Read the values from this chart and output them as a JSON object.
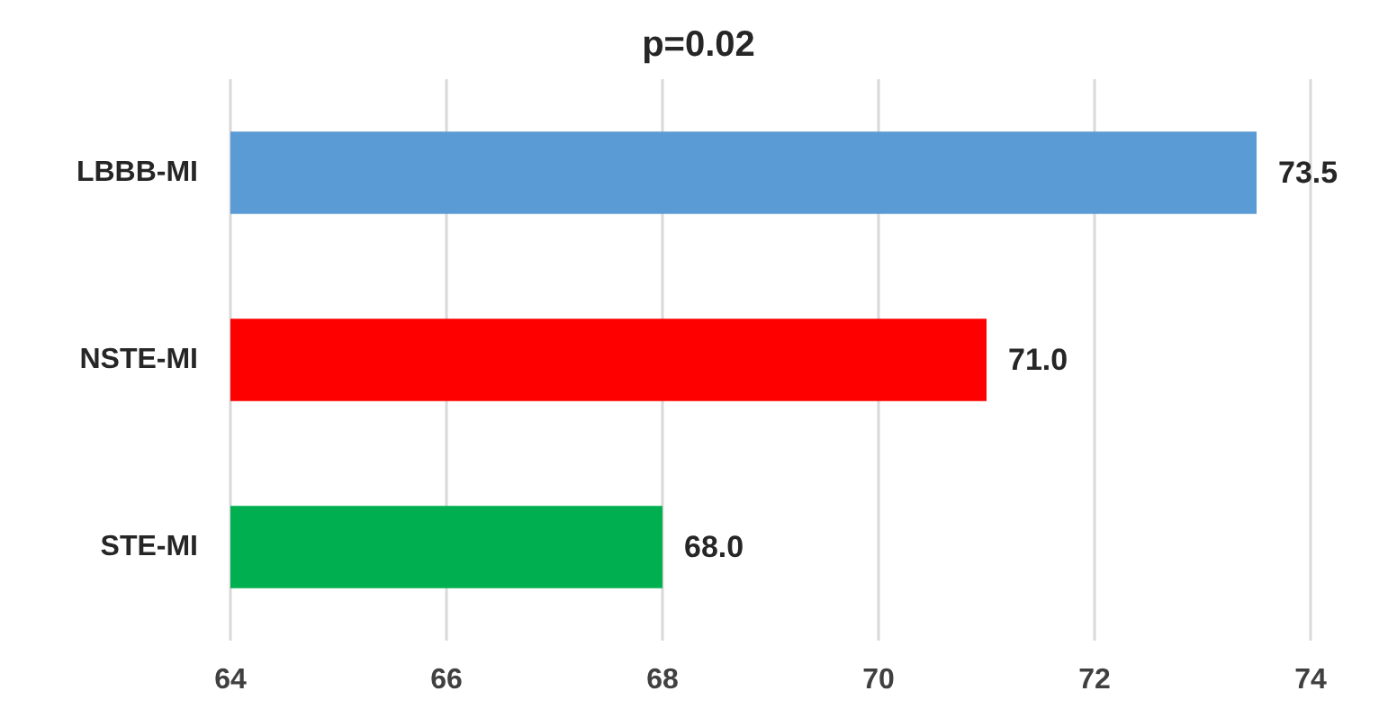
{
  "chart_data": {
    "type": "bar",
    "orientation": "horizontal",
    "title": "p=0.02",
    "categories": [
      "LBBB-MI",
      "NSTE-MI",
      "STE-MI"
    ],
    "values": [
      73.5,
      71.0,
      68.0
    ],
    "colors": [
      "#5b9bd5",
      "#ff0000",
      "#00b050"
    ],
    "value_labels": [
      "73.5",
      "71.0",
      "68.0"
    ],
    "xlim": [
      64,
      74
    ],
    "xticks": [
      64,
      66,
      68,
      70,
      72,
      74
    ],
    "grid": "x"
  }
}
